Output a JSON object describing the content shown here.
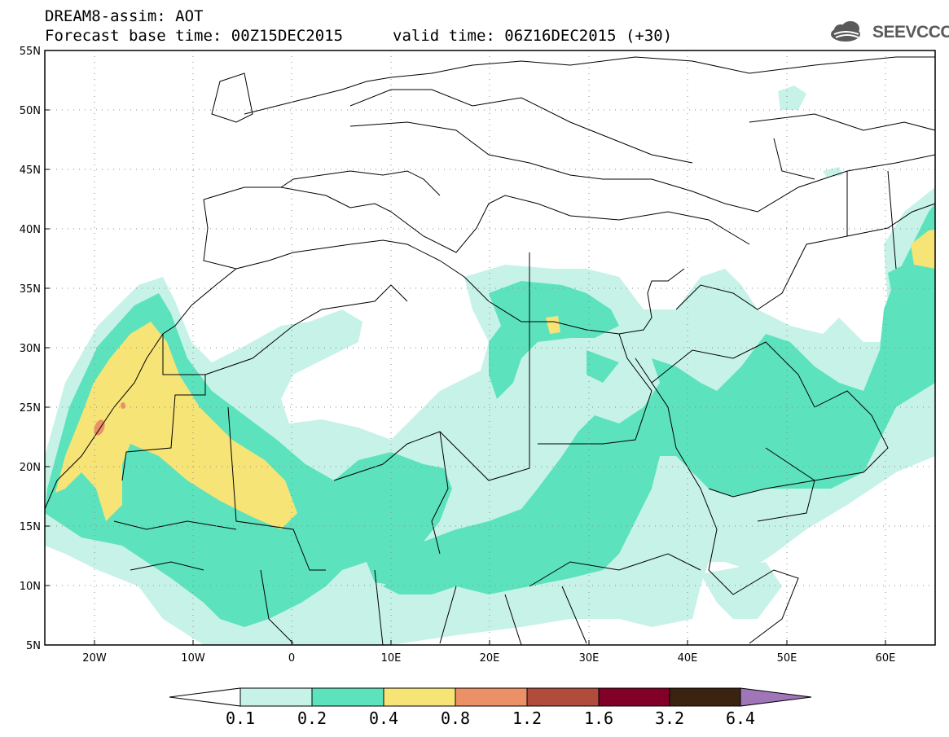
{
  "header": {
    "title_line1": "DREAM8-assim: AOT",
    "base_time": "Forecast base time: 00Z15DEC2015",
    "valid_time": "valid time: 06Z16DEC2015 (+30)"
  },
  "logo": {
    "text": "SEEVCCC",
    "icon": "cloud-logo-icon"
  },
  "axes": {
    "lat_labels": [
      "55N",
      "50N",
      "45N",
      "40N",
      "35N",
      "30N",
      "25N",
      "20N",
      "15N",
      "10N",
      "5N"
    ],
    "lon_labels": [
      "20W",
      "10W",
      "0",
      "10E",
      "20E",
      "30E",
      "40E",
      "50E",
      "60E"
    ],
    "lat_range": [
      5,
      55
    ],
    "lon_range": [
      -25,
      65
    ],
    "grid": "dotted"
  },
  "colorbar": {
    "levels": [
      "0.1",
      "0.2",
      "0.4",
      "0.8",
      "1.2",
      "1.6",
      "3.2",
      "6.4"
    ],
    "colors": [
      "#ffffff",
      "#c7f2e8",
      "#5ce3bd",
      "#f7e477",
      "#ec9066",
      "#b14c3c",
      "#820028",
      "#3b2311",
      "#a076b9"
    ],
    "extend": "both"
  },
  "colors": {
    "aot_0_1": "#c7f2e8",
    "aot_0_2": "#5ce3bd",
    "aot_0_4": "#f7e477",
    "aot_0_8": "#ec9066"
  }
}
